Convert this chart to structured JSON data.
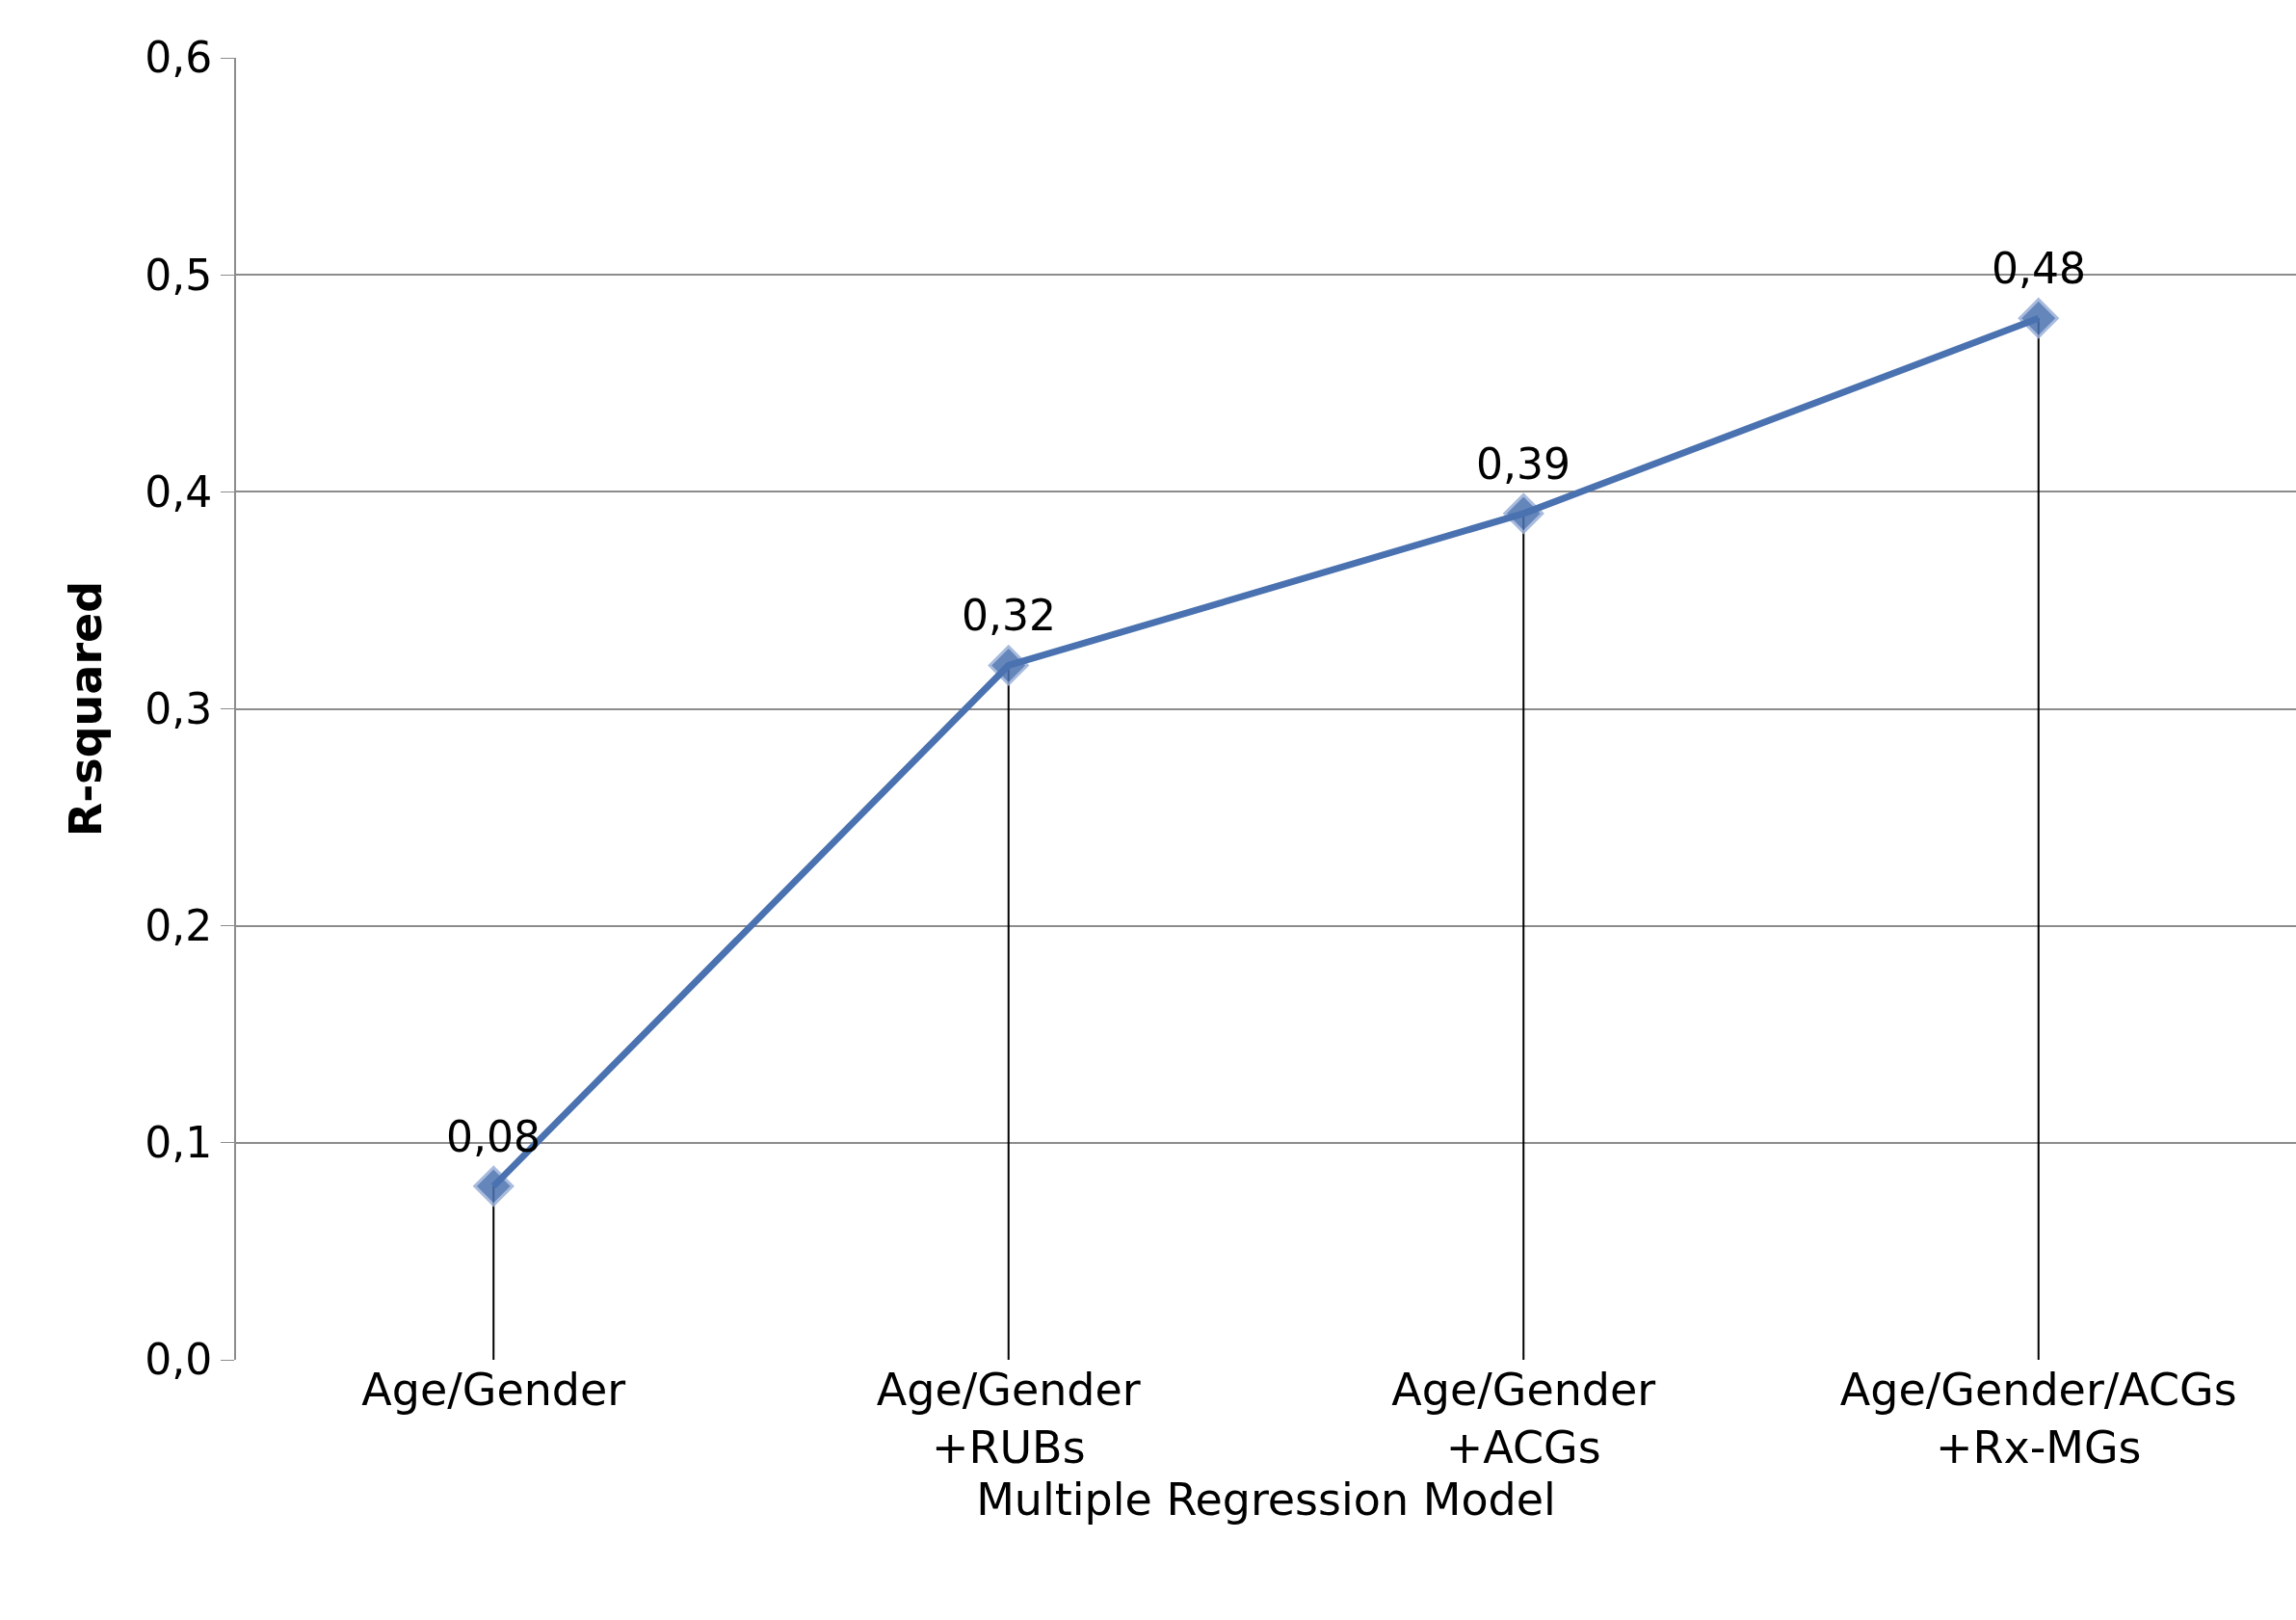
{
  "chart_data": {
    "type": "line",
    "xlabel": "Multiple Regression Model",
    "ylabel": "R-squared",
    "categories": [
      "Age/Gender",
      "Age/Gender\n+RUBs",
      "Age/Gender\n+ACGs",
      "Age/Gender/ACGs\n+Rx-MGs"
    ],
    "series": [
      {
        "type": "lollipop",
        "color": "#4a72b0",
        "values": [
          0.08,
          0.32,
          0.39,
          0.48
        ],
        "marker": "diamond"
      },
      {
        "color": "#4a72b0",
        "values": [
          0.08,
          0.32,
          0.39,
          0.48
        ],
        "value_labels": [
          "0,08",
          "0,32",
          "0,39",
          "0,48"
        ],
        "marker": "none"
      }
    ],
    "ylim": [
      0,
      0.6
    ],
    "yticks": [
      {
        "value": 0,
        "label": "0,0"
      },
      {
        "value": 0.1,
        "label": "0,1"
      },
      {
        "value": 0.2,
        "label": "0,2"
      },
      {
        "value": 0.3,
        "label": "0,3"
      },
      {
        "value": 0.4,
        "label": "0,4"
      },
      {
        "value": 0.5,
        "label": "0,5"
      },
      {
        "value": 0.6,
        "label": "0,6"
      }
    ],
    "grid": "y",
    "legend": false
  }
}
